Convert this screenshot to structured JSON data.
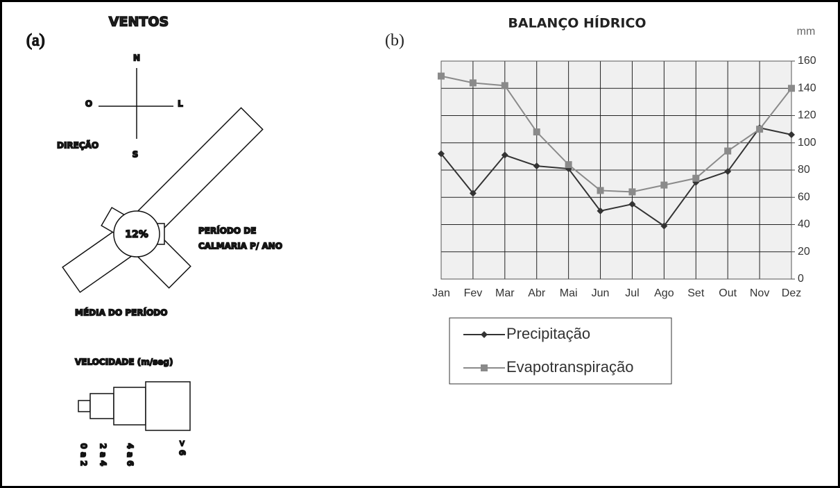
{
  "wind_diagram": {
    "panel_label": "(a)",
    "title": "VENTOS",
    "compass": {
      "north": "N",
      "west": "O",
      "east": "L",
      "south": "S"
    },
    "direction_label": "DIREÇÃO",
    "calm_percent": "12%",
    "calm_label": [
      "PERÍODO DE",
      "CALMARIA P/ ANO"
    ],
    "average_label": "MÉDIA DO PERÍODO",
    "speed_title": "VELOCIDADE (m/seg)",
    "speed_classes": [
      "0 a 2",
      "2 a 4",
      "4 a 6",
      "> 6"
    ]
  },
  "chart_data": {
    "type": "line",
    "panel_label": "(b)",
    "title": "BALANÇO HÍDRICO",
    "y_unit": "mm",
    "categories": [
      "Jan",
      "Fev",
      "Mar",
      "Abr",
      "Mai",
      "Jun",
      "Jul",
      "Ago",
      "Set",
      "Out",
      "Nov",
      "Dez"
    ],
    "series": [
      {
        "name": "Precipitação",
        "color": "#333333",
        "marker": "diamond",
        "values": [
          92,
          63,
          91,
          83,
          81,
          50,
          55,
          39,
          71,
          79,
          111,
          106
        ]
      },
      {
        "name": "Evapotranspiração",
        "color": "#8a8a8a",
        "marker": "square",
        "values": [
          149,
          144,
          142,
          108,
          84,
          65,
          64,
          69,
          74,
          94,
          110,
          140
        ]
      }
    ],
    "ylim": [
      0,
      160
    ],
    "yticks": [
      0,
      20,
      40,
      60,
      80,
      100,
      120,
      140,
      160
    ],
    "y_axis_side": "right",
    "grid": true,
    "legend": "below"
  }
}
